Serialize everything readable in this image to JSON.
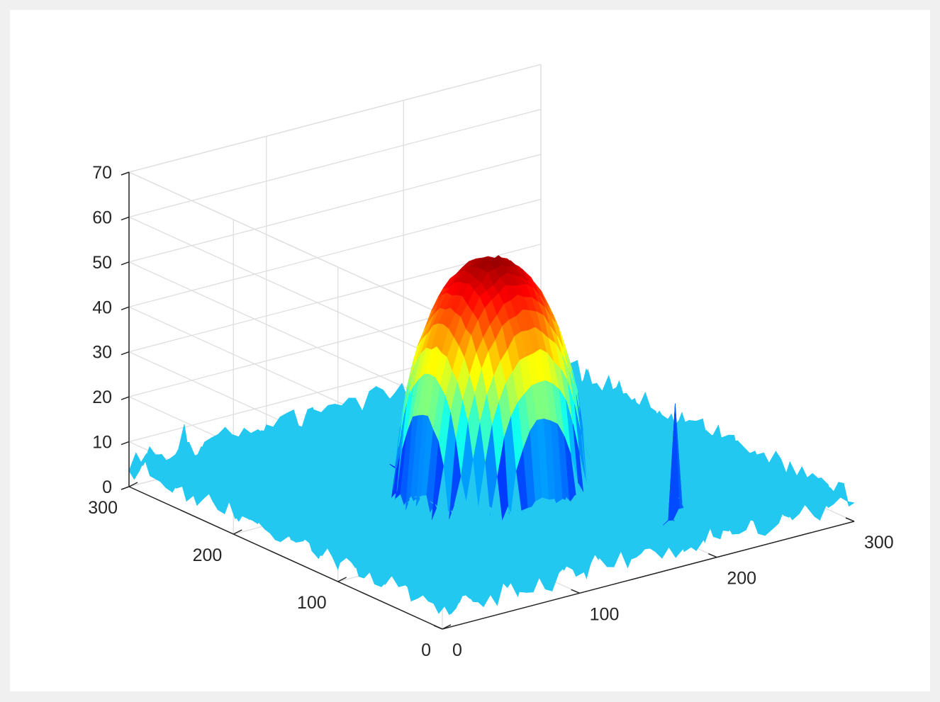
{
  "colors": {
    "figure_background": "#f0f0f0",
    "axes_background": "#ffffff",
    "grid": "#dedede",
    "axis": "#262626",
    "noise_floor": "#23c8f0",
    "colormap": "jet"
  },
  "chart_data": {
    "type": "surface",
    "title": "",
    "xlabel": "",
    "ylabel": "",
    "zlabel": "",
    "xlim": [
      0,
      300
    ],
    "ylim": [
      0,
      300
    ],
    "zlim": [
      0,
      70
    ],
    "grid": true,
    "colormap": "jet",
    "color_limits": [
      0,
      56
    ],
    "x_ticks": [
      "0",
      "100",
      "200",
      "300"
    ],
    "y_ticks": [
      "0",
      "100",
      "200",
      "300"
    ],
    "z_ticks": [
      "0",
      "10",
      "20",
      "30",
      "40",
      "50",
      "60",
      "70"
    ],
    "surface": {
      "shape": "central dome over noisy flat floor",
      "dome_center": [
        150,
        150
      ],
      "dome_radius": 55,
      "dome_peak": 54,
      "floor_level": 5,
      "noise_amplitude": 3,
      "spikes": [
        {
          "x": 14,
          "y": 270,
          "z": 12
        },
        {
          "x": 25,
          "y": 280,
          "z": 14
        },
        {
          "x": 80,
          "y": 220,
          "z": 10
        },
        {
          "x": 200,
          "y": 40,
          "z": 30
        },
        {
          "x": 210,
          "y": 55,
          "z": 12
        }
      ]
    }
  }
}
